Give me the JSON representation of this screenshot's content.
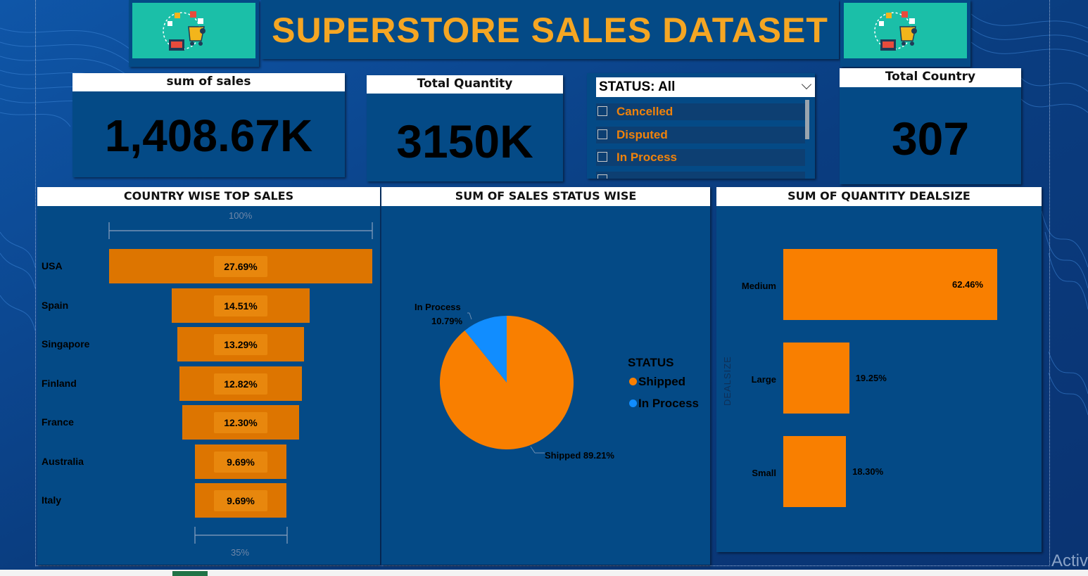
{
  "title": "SUPERSTORE SALES DATASET",
  "kpis": {
    "sales": {
      "label": "sum of sales",
      "value": "1,408.67K"
    },
    "quantity": {
      "label": "Total Quantity",
      "value": "3150K"
    },
    "country": {
      "label": "Total Country",
      "value": "307"
    }
  },
  "slicer": {
    "header": "STATUS: All",
    "items": [
      "Cancelled",
      "Disputed",
      "In Process"
    ]
  },
  "chart_data": [
    {
      "type": "bar",
      "subtype": "funnel",
      "title": "COUNTRY WISE TOP SALES",
      "categories": [
        "USA",
        "Spain",
        "Singapore",
        "Finland",
        "France",
        "Australia",
        "Italy"
      ],
      "values": [
        27.69,
        14.51,
        13.29,
        12.82,
        12.3,
        9.69,
        9.69
      ],
      "labels": [
        "27.69%",
        "14.51%",
        "13.29%",
        "12.82%",
        "12.30%",
        "9.69%",
        "9.69%"
      ],
      "top_label": "100%",
      "bottom_label": "35%"
    },
    {
      "type": "pie",
      "title": "SUM OF SALES STATUS WISE",
      "legend_title": "STATUS",
      "legend_position": "right",
      "categories": [
        "Shipped",
        "In Process"
      ],
      "values": [
        89.21,
        10.79
      ],
      "colors": [
        "#f97f00",
        "#118dff"
      ],
      "labels": [
        "Shipped 89.21%",
        "In Process",
        "10.79%"
      ]
    },
    {
      "type": "bar",
      "orientation": "horizontal",
      "title": "SUM OF QUANTITY DEALSIZE",
      "ylabel": "DEALSIZE",
      "categories": [
        "Medium",
        "Large",
        "Small"
      ],
      "values": [
        62.46,
        19.25,
        18.3
      ],
      "labels": [
        "62.46%",
        "19.25%",
        "18.30%"
      ]
    }
  ],
  "colors": {
    "background": "#0b3a78",
    "panel": "#044a86",
    "accent": "#f5a623",
    "bar": "#f97f00"
  },
  "watermark": "Activ"
}
